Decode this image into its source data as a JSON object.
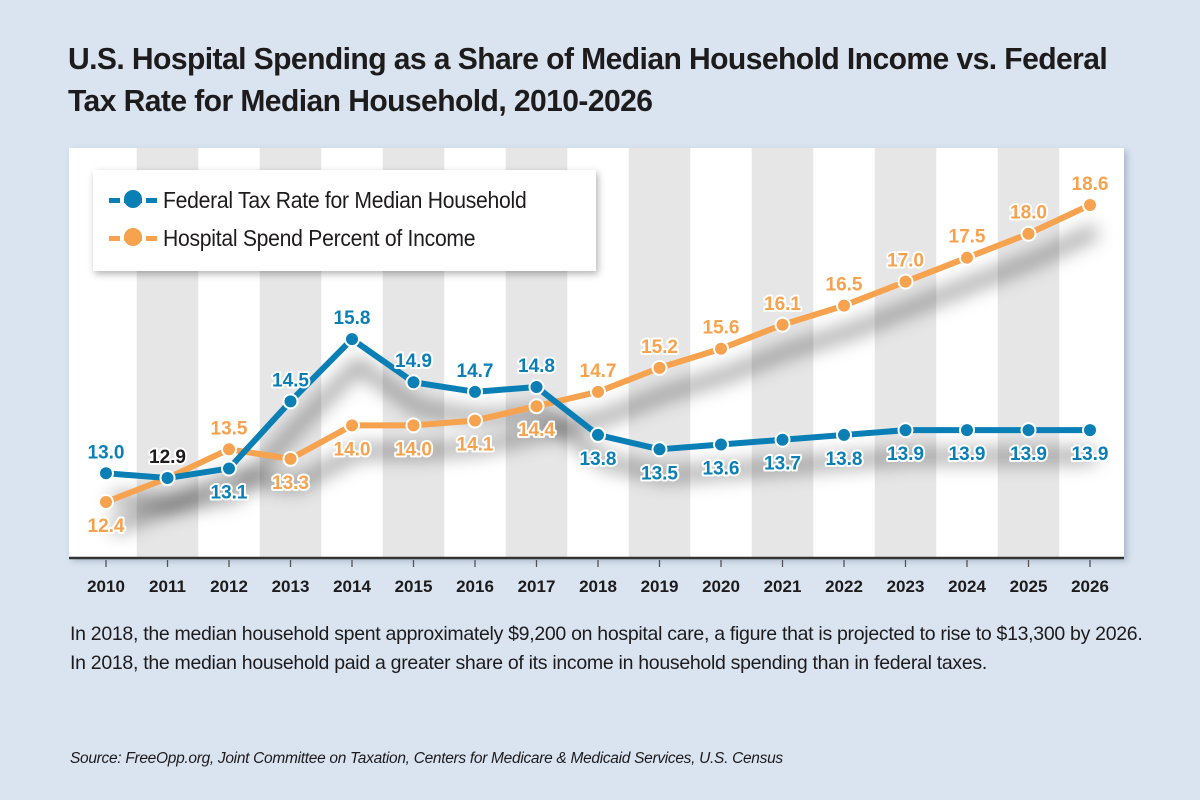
{
  "title": "U.S. Hospital Spending as a Share of Median Household Income vs. Federal Tax Rate for Median Household, 2010-2026",
  "caption": "In 2018, the median household spent approximately $9,200 on hospital care, a figure that is projected to rise to $13,300 by 2026. In 2018, the median household paid a greater share of its income in household spending than in federal taxes.",
  "source": "Source: FreeOpp.org, Joint Committee on Taxation, Centers for Medicare & Medicaid Services, U.S. Census",
  "colors": {
    "background": "#d9e4f0",
    "federal_tax": "#0a7fb5",
    "hospital_spend": "#f7a24e",
    "stripe": "#e6e6e6",
    "text": "#1e1b1c"
  },
  "legend": {
    "placement": "top-left",
    "items": [
      {
        "label": "Federal Tax Rate for Median Household",
        "color": "#0a7fb5",
        "icon": "line-dot-marker"
      },
      {
        "label": "Hospital Spend Percent of Income",
        "color": "#f7a24e",
        "icon": "line-dot-marker"
      }
    ]
  },
  "chart_data": {
    "type": "line",
    "title": "U.S. Hospital Spending as a Share of Median Household Income vs. Federal Tax Rate for Median Household, 2010-2026",
    "xlabel": "",
    "ylabel": "",
    "x": [
      "2010",
      "2011",
      "2012",
      "2013",
      "2014",
      "2015",
      "2016",
      "2017",
      "2018",
      "2019",
      "2020",
      "2021",
      "2022",
      "2023",
      "2024",
      "2025",
      "2026"
    ],
    "ylim": [
      11.3,
      19.4
    ],
    "grid": false,
    "alternating_column_stripes": true,
    "legend_placement": "top-left",
    "series": [
      {
        "name": "Federal Tax Rate for Median Household",
        "color": "#0a7fb5",
        "values": [
          13.0,
          12.9,
          13.1,
          14.5,
          15.8,
          14.9,
          14.7,
          14.8,
          13.8,
          13.5,
          13.6,
          13.7,
          13.8,
          13.9,
          13.9,
          13.9,
          13.9
        ],
        "label_position": [
          "above",
          "above",
          "below",
          "above",
          "above",
          "above",
          "above",
          "above",
          "below",
          "below",
          "below",
          "below",
          "below",
          "below",
          "below",
          "below",
          "below"
        ],
        "label_highlight": [
          false,
          true,
          false,
          false,
          false,
          false,
          false,
          false,
          false,
          false,
          false,
          false,
          false,
          false,
          false,
          false,
          false
        ]
      },
      {
        "name": "Hospital Spend Percent of Income",
        "color": "#f7a24e",
        "values": [
          12.4,
          12.9,
          13.5,
          13.3,
          14.0,
          14.0,
          14.1,
          14.4,
          14.7,
          15.2,
          15.6,
          16.1,
          16.5,
          17.0,
          17.5,
          18.0,
          18.6
        ],
        "label_position": [
          "below",
          "none",
          "above",
          "below",
          "below",
          "below",
          "below",
          "below",
          "above",
          "above",
          "above",
          "above",
          "above",
          "above",
          "above",
          "above",
          "above"
        ]
      }
    ]
  }
}
